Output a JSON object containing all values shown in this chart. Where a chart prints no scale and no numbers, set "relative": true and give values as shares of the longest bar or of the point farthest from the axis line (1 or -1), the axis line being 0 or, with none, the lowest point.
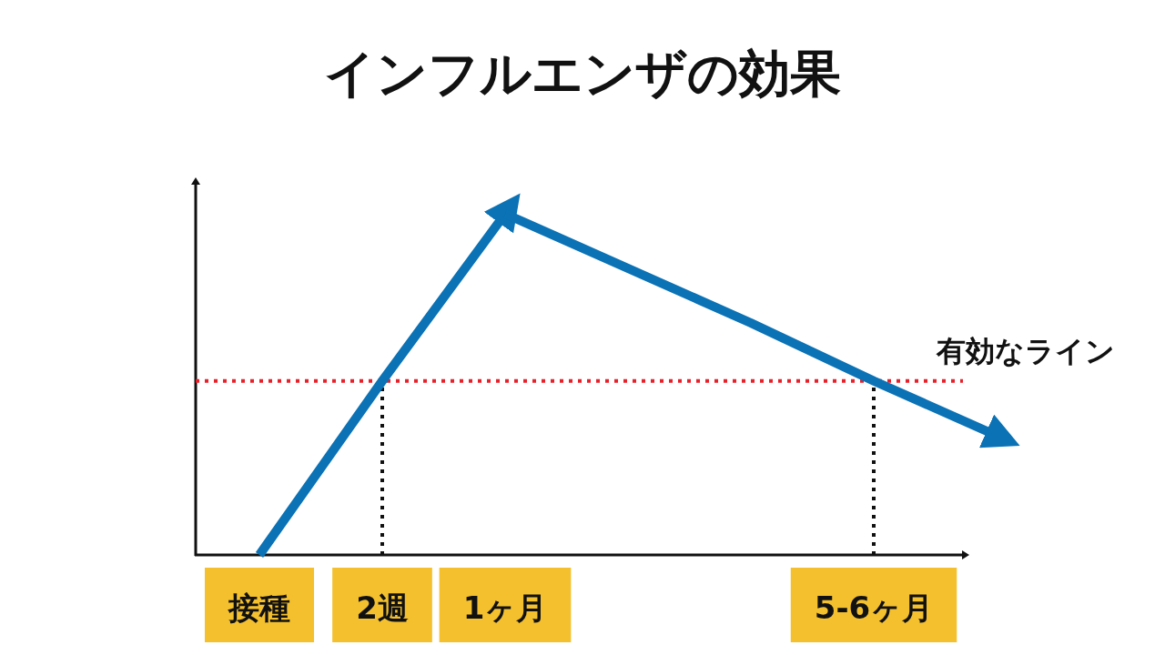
{
  "chart_data": {
    "type": "line",
    "title": "インフルエンザの効果",
    "relative": true,
    "categories": [
      "接種",
      "2週",
      "1ヶ月",
      null,
      null,
      "5-6ヶ月",
      null
    ],
    "series": [
      {
        "color": "#0a72b5",
        "values": [
          0,
          0.51,
          1,
          null,
          null,
          null,
          null
        ]
      },
      {
        "color": "#0a72b5",
        "values": [
          null,
          null,
          1,
          0.84,
          0.68,
          0.51,
          0.35
        ]
      }
    ],
    "ref_lines": [
      {
        "axis": "y",
        "value": 0.51,
        "label": "有効なライン",
        "color": "#e8202a",
        "line_style": "dotted"
      },
      {
        "axis": "x",
        "value": "2週",
        "color": "#111111",
        "line_style": "dotted"
      },
      {
        "axis": "x",
        "value": "5-6ヶ月",
        "color": "#111111",
        "line_style": "dotted"
      }
    ]
  }
}
